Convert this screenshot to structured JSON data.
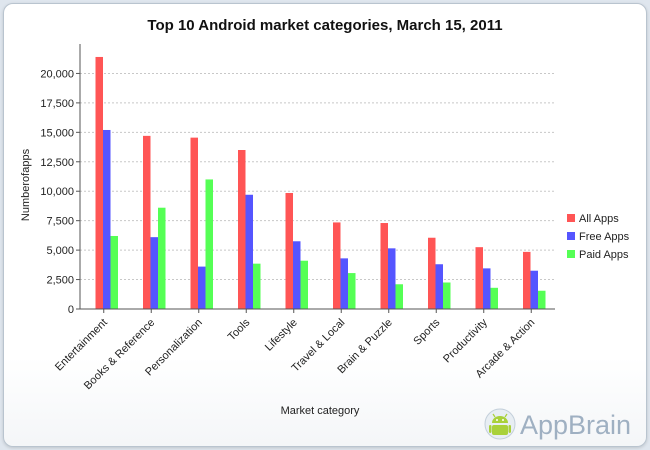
{
  "chart_data": {
    "type": "bar",
    "title": "Top 10 Android market categories, March 15, 2011",
    "xlabel": "Market category",
    "ylabel": "Numberofapps",
    "categories": [
      "Entertainment",
      "Books & Reference",
      "Personalization",
      "Tools",
      "Lifestyle",
      "Travel & Local",
      "Brain & Puzzle",
      "Sports",
      "Productivity",
      "Arcade & Action"
    ],
    "series": [
      {
        "name": "All Apps",
        "color": "#ff5555",
        "values": [
          21400,
          14700,
          14550,
          13500,
          9850,
          7350,
          7300,
          6050,
          5250,
          4850
        ]
      },
      {
        "name": "Free Apps",
        "color": "#5555ff",
        "values": [
          15200,
          6100,
          3600,
          9700,
          5750,
          4300,
          5150,
          3800,
          3450,
          3250
        ]
      },
      {
        "name": "Paid Apps",
        "color": "#55ff55",
        "values": [
          6200,
          8600,
          11000,
          3850,
          4100,
          3050,
          2100,
          2250,
          1800,
          1550
        ]
      }
    ],
    "ylim": [
      0,
      22500
    ],
    "yticks": [
      0,
      2500,
      5000,
      7500,
      10000,
      12500,
      15000,
      17500,
      20000
    ],
    "ytick_labels": [
      "0",
      "2,500",
      "5,000",
      "7,500",
      "10,000",
      "12,500",
      "15,000",
      "17,500",
      "20,000"
    ],
    "grid": true,
    "legend_position": "right"
  },
  "branding": {
    "text": "AppBrain",
    "logo_icon": "android-robot-icon"
  }
}
